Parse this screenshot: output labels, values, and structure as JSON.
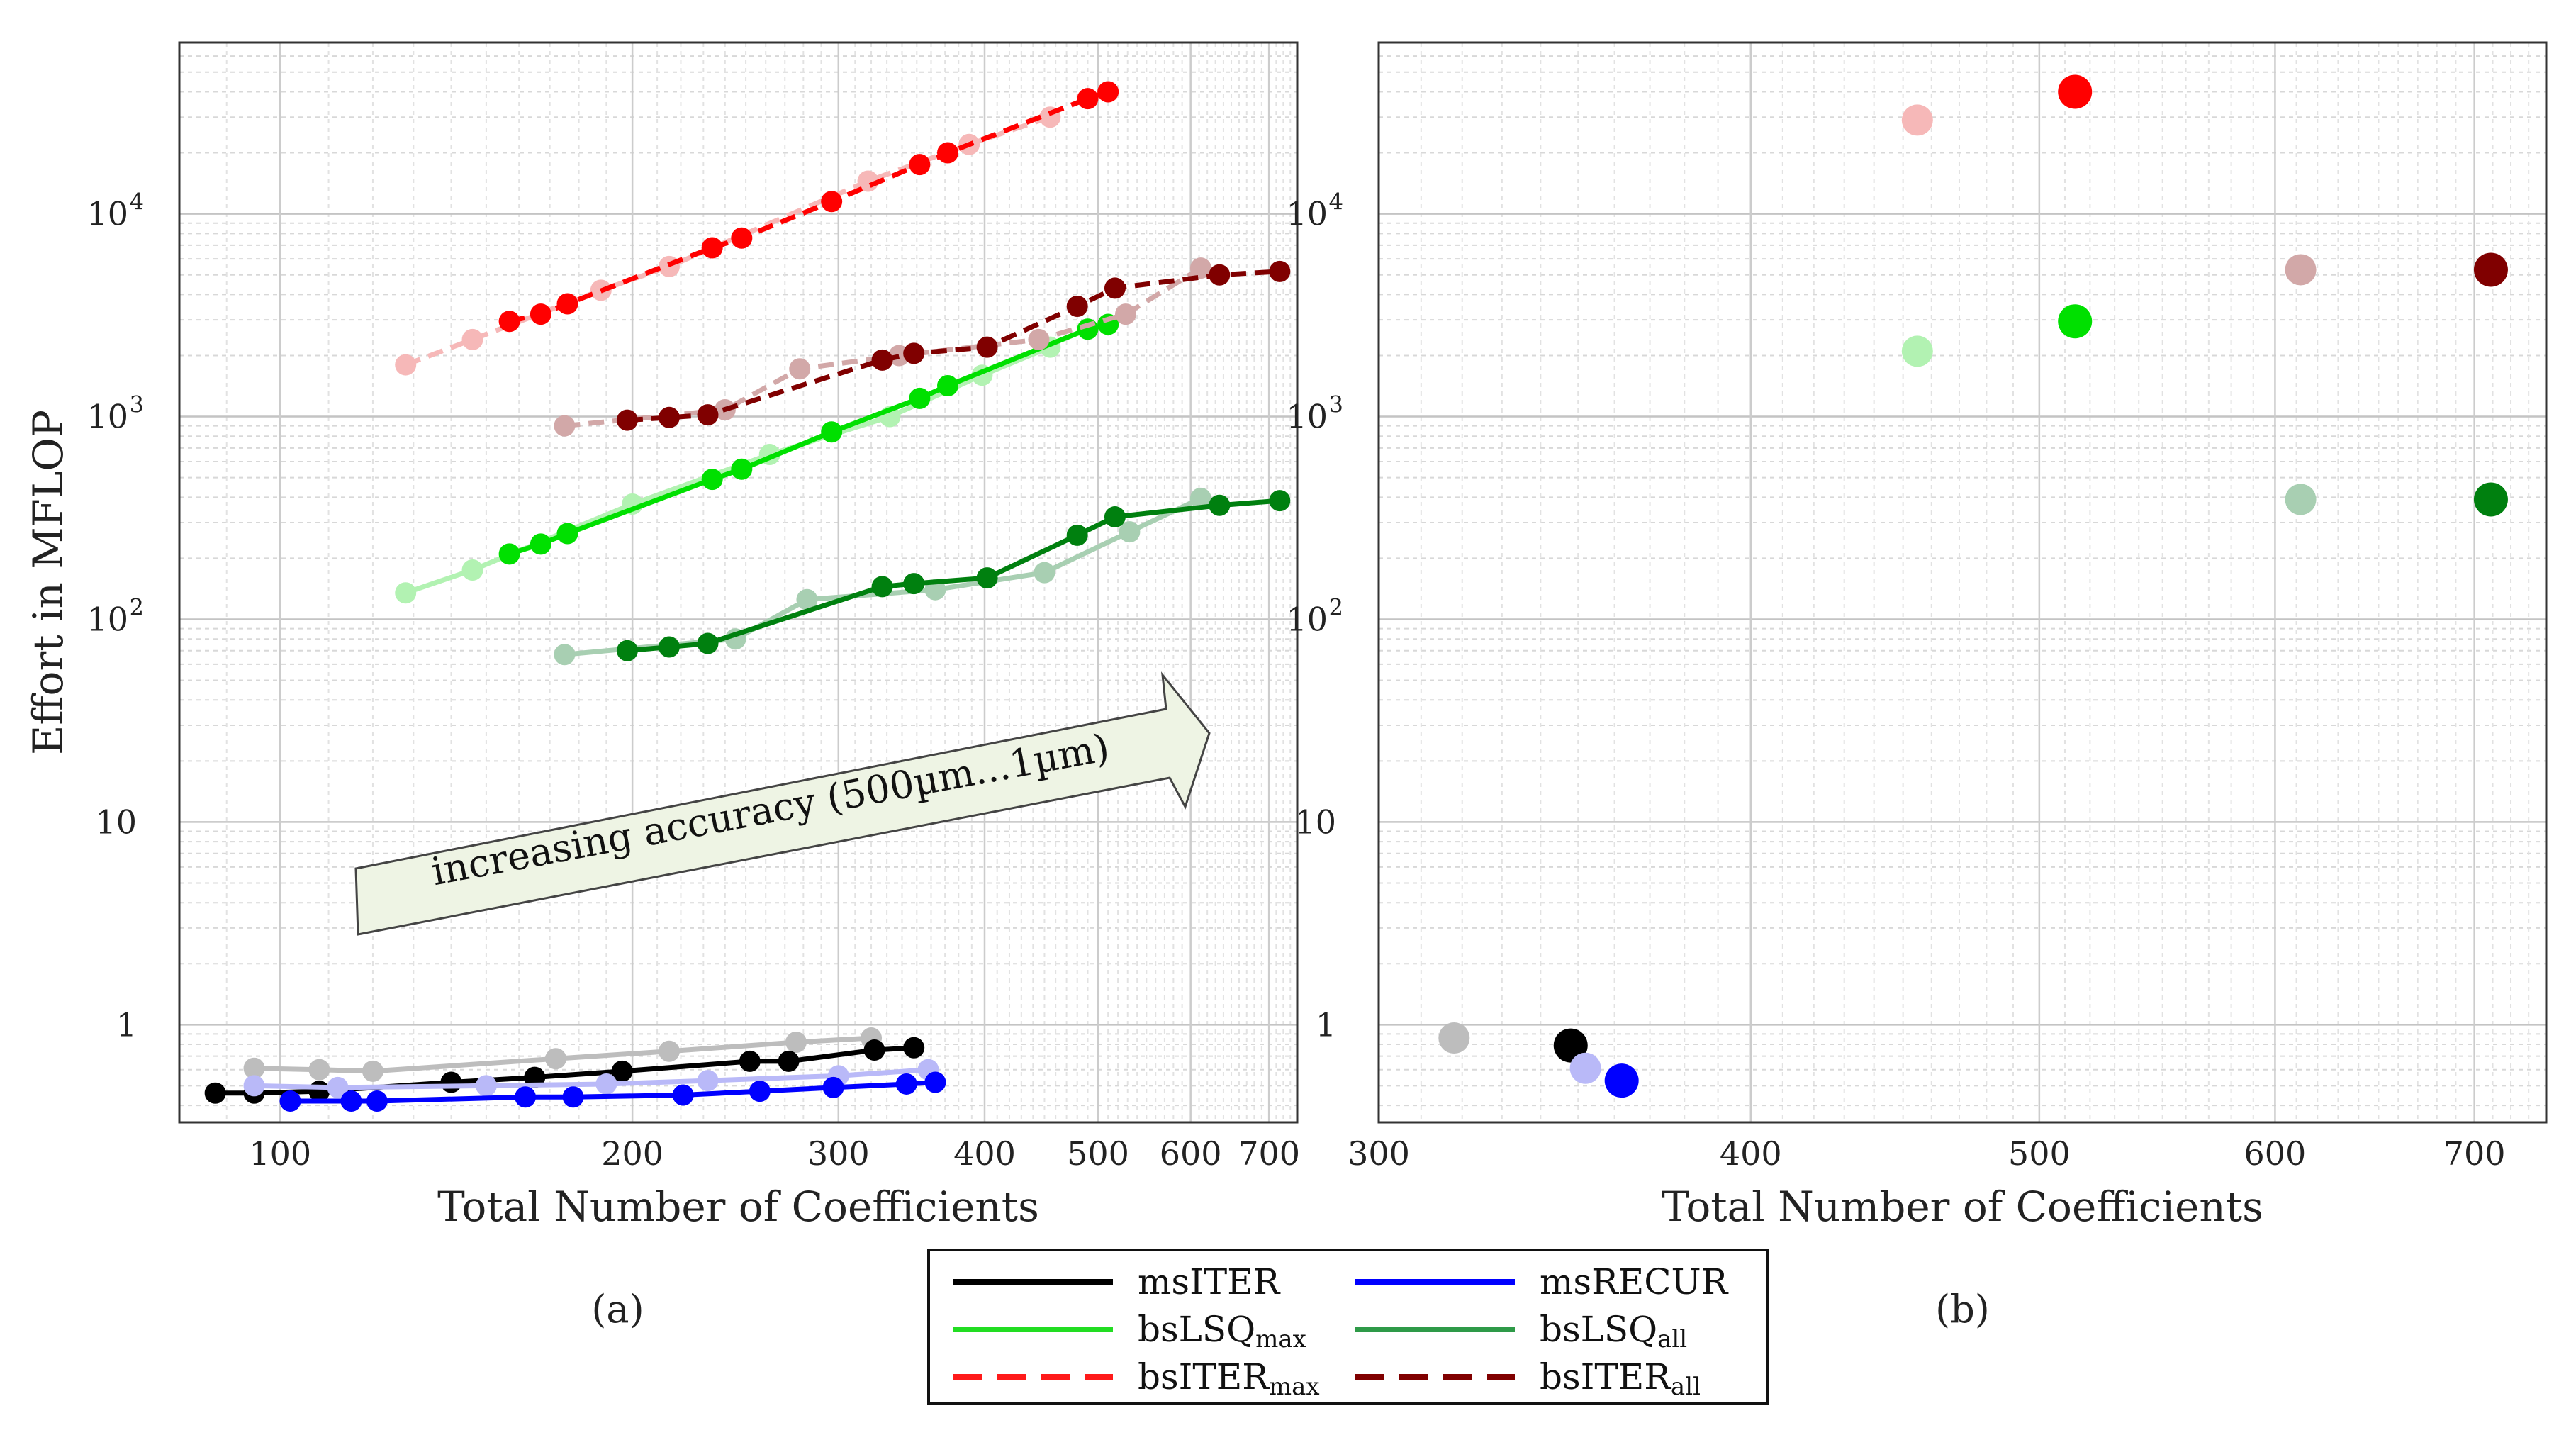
{
  "chart_data": [
    {
      "type": "scatter",
      "panel_label": "(a)",
      "xscale": "log",
      "yscale": "log",
      "xlabel": "Total Number of Coefficients",
      "ylabel": "Effort in MFLOP",
      "xlim": [
        82,
        740
      ],
      "ylim": [
        0.33,
        70000
      ],
      "x_ticks": [
        {
          "v": 100,
          "label": "100"
        },
        {
          "v": 200,
          "label": "200"
        },
        {
          "v": 300,
          "label": "300"
        },
        {
          "v": 400,
          "label": "400"
        },
        {
          "v": 500,
          "label": "500"
        },
        {
          "v": 600,
          "label": "600"
        },
        {
          "v": 700,
          "label": "700"
        }
      ],
      "y_ticks": [
        {
          "v": 1,
          "label": "1",
          "exp": ""
        },
        {
          "v": 10,
          "label": "10",
          "exp": ""
        },
        {
          "v": 100,
          "label": "10",
          "exp": "2"
        },
        {
          "v": 1000,
          "label": "10",
          "exp": "3"
        },
        {
          "v": 10000,
          "label": "10",
          "exp": "4"
        }
      ],
      "annotation": {
        "text": "increasing accuracy (500µm...1µm)"
      },
      "series": [
        {
          "name": "msITER",
          "color": "#000000",
          "dash": false,
          "x": [
            88,
            95,
            108,
            140,
            165,
            196,
            252,
            272,
            322,
            348
          ],
          "y": [
            0.46,
            0.46,
            0.47,
            0.52,
            0.55,
            0.59,
            0.66,
            0.66,
            0.75,
            0.77
          ],
          "faded_x": [
            95,
            108,
            120,
            172,
            215,
            276,
            320
          ],
          "faded_y": [
            0.61,
            0.6,
            0.59,
            0.68,
            0.74,
            0.82,
            0.86
          ]
        },
        {
          "name": "msRECUR",
          "color": "#0000ff",
          "dash": false,
          "x": [
            102,
            115,
            121,
            162,
            178,
            221,
            257,
            297,
            343,
            363
          ],
          "y": [
            0.42,
            0.42,
            0.42,
            0.44,
            0.44,
            0.45,
            0.47,
            0.49,
            0.51,
            0.52
          ],
          "faded_x": [
            95,
            112,
            150,
            190,
            232,
            300,
            358
          ],
          "faded_y": [
            0.5,
            0.49,
            0.5,
            0.51,
            0.53,
            0.56,
            0.6
          ]
        },
        {
          "name": "bsLSQ_max",
          "color": "#00e000",
          "dash": false,
          "x": [
            157,
            167,
            176,
            234,
            248,
            296,
            352,
            372,
            490,
            510
          ],
          "y": [
            210,
            235,
            265,
            490,
            550,
            840,
            1230,
            1420,
            2700,
            2850
          ],
          "faded_x": [
            128,
            146,
            200,
            262,
            332,
            398,
            455
          ],
          "faded_y": [
            135,
            175,
            370,
            650,
            1000,
            1600,
            2200
          ]
        },
        {
          "name": "bsLSQ_all",
          "color": "#00800f",
          "dash": false,
          "x": [
            198,
            215,
            232,
            327,
            348,
            402,
            480,
            517,
            635,
            715
          ],
          "y": [
            70,
            73,
            76,
            145,
            150,
            160,
            260,
            320,
            365,
            385
          ],
          "faded_x": [
            175,
            245,
            282,
            363,
            450,
            532,
            612
          ],
          "faded_y": [
            67,
            80,
            125,
            140,
            170,
            270,
            395
          ]
        },
        {
          "name": "bsITER_max",
          "color": "#ff0000",
          "dash": true,
          "x": [
            157,
            167,
            176,
            234,
            248,
            296,
            352,
            372,
            490,
            510
          ],
          "y": [
            2950,
            3200,
            3600,
            6800,
            7600,
            11500,
            17500,
            20000,
            37000,
            40000
          ],
          "faded_x": [
            128,
            146,
            188,
            215,
            318,
            388,
            455
          ],
          "faded_y": [
            1800,
            2400,
            4200,
            5500,
            14500,
            22000,
            30000
          ]
        },
        {
          "name": "bsITER_all",
          "color": "#800000",
          "dash": true,
          "x": [
            198,
            215,
            232,
            327,
            348,
            402,
            480,
            517,
            635,
            715
          ],
          "y": [
            960,
            990,
            1020,
            1900,
            2050,
            2200,
            3500,
            4300,
            5000,
            5200
          ],
          "faded_x": [
            175,
            240,
            278,
            338,
            445,
            528,
            612
          ],
          "faded_y": [
            900,
            1080,
            1720,
            2000,
            2400,
            3200,
            5400
          ]
        }
      ]
    },
    {
      "type": "scatter",
      "panel_label": "(b)",
      "xscale": "log",
      "yscale": "log",
      "xlabel": "Total Number of Coefficients",
      "ylabel": "",
      "xlim": [
        300,
        740
      ],
      "ylim": [
        0.33,
        70000
      ],
      "x_ticks": [
        {
          "v": 300,
          "label": "300"
        },
        {
          "v": 400,
          "label": "400"
        },
        {
          "v": 500,
          "label": "500"
        },
        {
          "v": 600,
          "label": "600"
        },
        {
          "v": 700,
          "label": "700"
        }
      ],
      "y_ticks": [
        {
          "v": 1,
          "label": "1",
          "exp": ""
        },
        {
          "v": 10,
          "label": "10",
          "exp": ""
        },
        {
          "v": 100,
          "label": "10",
          "exp": "2"
        },
        {
          "v": 1000,
          "label": "10",
          "exp": "3"
        },
        {
          "v": 10000,
          "label": "10",
          "exp": "4"
        }
      ],
      "points": [
        {
          "series": "msITER",
          "x": 318,
          "y": 0.86,
          "faded": true
        },
        {
          "series": "msITER",
          "x": 348,
          "y": 0.79,
          "faded": false
        },
        {
          "series": "msRECUR",
          "x": 352,
          "y": 0.61,
          "faded": true
        },
        {
          "series": "msRECUR",
          "x": 362,
          "y": 0.53,
          "faded": false
        },
        {
          "series": "bsLSQ_max",
          "x": 455,
          "y": 2100,
          "faded": true
        },
        {
          "series": "bsLSQ_max",
          "x": 514,
          "y": 2950,
          "faded": false
        },
        {
          "series": "bsITER_max",
          "x": 455,
          "y": 29000,
          "faded": true
        },
        {
          "series": "bsITER_max",
          "x": 514,
          "y": 40000,
          "faded": false
        },
        {
          "series": "bsLSQ_all",
          "x": 612,
          "y": 390,
          "faded": true
        },
        {
          "series": "bsLSQ_all",
          "x": 709,
          "y": 390,
          "faded": false
        },
        {
          "series": "bsITER_all",
          "x": 612,
          "y": 5300,
          "faded": true
        },
        {
          "series": "bsITER_all",
          "x": 709,
          "y": 5300,
          "faded": false
        }
      ]
    }
  ],
  "legend": {
    "items": [
      {
        "key": "msITER",
        "label": "msITER",
        "sub": "",
        "color": "#000000",
        "dash": false
      },
      {
        "key": "msRECUR",
        "label": "msRECUR",
        "sub": "",
        "color": "#0000ff",
        "dash": false
      },
      {
        "key": "bsLSQ_max",
        "label": "bsLSQ",
        "sub": "max",
        "color": "#22dd22",
        "dash": false
      },
      {
        "key": "bsLSQ_all",
        "label": "bsLSQ",
        "sub": "all",
        "color": "#2e9a48",
        "dash": false
      },
      {
        "key": "bsITER_max",
        "label": "bsITER",
        "sub": "max",
        "color": "#ff1a1a",
        "dash": true
      },
      {
        "key": "bsITER_all",
        "label": "bsITER",
        "sub": "all",
        "color": "#800000",
        "dash": true
      }
    ]
  }
}
